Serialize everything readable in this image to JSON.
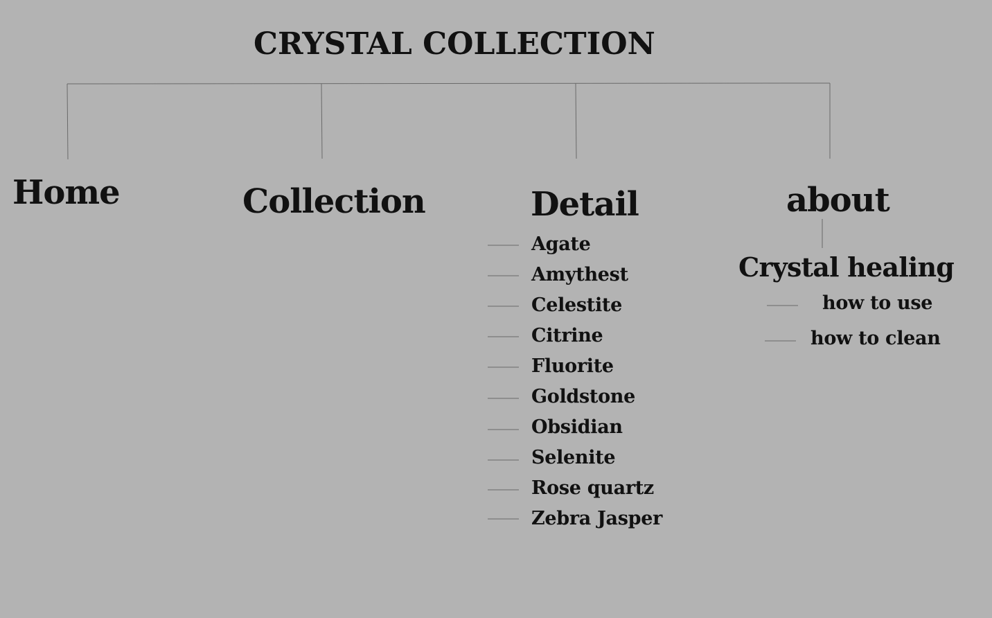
{
  "title": "CRYSTAL COLLECTION",
  "nav": {
    "home": "Home",
    "collection": "Collection",
    "detail": "Detail",
    "about": "about"
  },
  "detail": {
    "items": [
      "Agate",
      "Amythest",
      "Celestite",
      "Citrine",
      "Fluorite",
      "Goldstone",
      "Obsidian",
      "Selenite",
      "Rose quartz",
      "Zebra Jasper"
    ]
  },
  "about": {
    "section": "Crystal healing",
    "items": [
      "how to use",
      "how to clean"
    ]
  },
  "colors": {
    "background": "#b3b3b3",
    "text": "#111111",
    "connector": "#6a6a6a"
  }
}
